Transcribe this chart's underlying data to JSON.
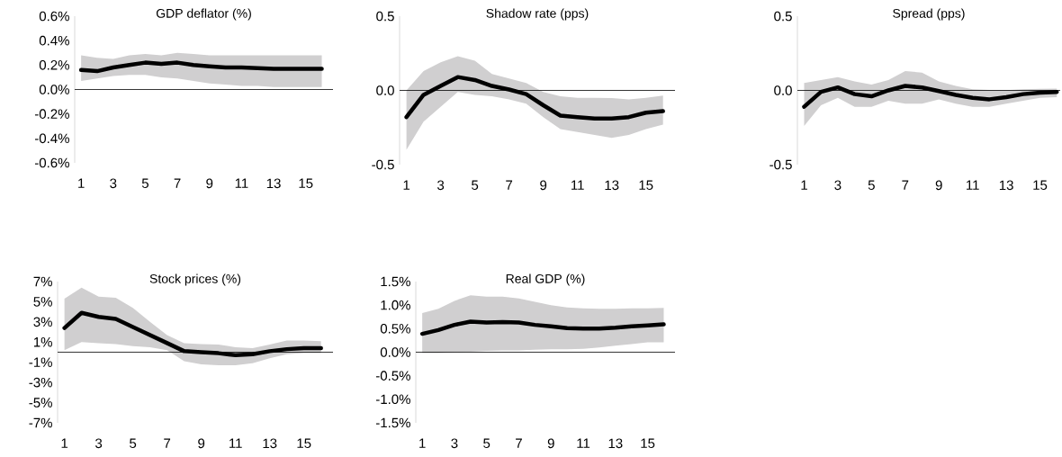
{
  "chart_data": [
    {
      "type": "line",
      "title": "GDP deflator (%)",
      "x": [
        1,
        2,
        3,
        4,
        5,
        6,
        7,
        8,
        9,
        10,
        11,
        12,
        13,
        14,
        15,
        16
      ],
      "xlim": [
        0.6,
        16.7
      ],
      "xticks": [
        1,
        3,
        5,
        7,
        9,
        11,
        13,
        15
      ],
      "ylim": [
        -0.6,
        0.6
      ],
      "yticks": [
        {
          "value": -0.6,
          "label": "-0.6%"
        },
        {
          "value": -0.4,
          "label": "-0.4%"
        },
        {
          "value": -0.2,
          "label": "-0.2%"
        },
        {
          "value": 0,
          "label": "0.0%"
        },
        {
          "value": 0.2,
          "label": "0.2%"
        },
        {
          "value": 0.4,
          "label": "0.4%"
        },
        {
          "value": 0.6,
          "label": "0.6%"
        }
      ],
      "series": [
        {
          "color": "#000000",
          "values": [
            0.16,
            0.15,
            0.18,
            0.2,
            0.22,
            0.21,
            0.22,
            0.2,
            0.19,
            0.18,
            0.18,
            0.175,
            0.17,
            0.17,
            0.17,
            0.17
          ],
          "lower": [
            0.07,
            0.09,
            0.11,
            0.12,
            0.12,
            0.1,
            0.09,
            0.07,
            0.05,
            0.04,
            0.03,
            0.03,
            0.02,
            0.02,
            0.02,
            0.02
          ],
          "upper": [
            0.28,
            0.26,
            0.25,
            0.28,
            0.29,
            0.28,
            0.3,
            0.29,
            0.28,
            0.28,
            0.28,
            0.28,
            0.28,
            0.28,
            0.28,
            0.28
          ]
        }
      ],
      "ref_lines": [
        {
          "axis": "y",
          "value": 0,
          "color": "#000000"
        }
      ]
    },
    {
      "type": "line",
      "title": "Shadow rate (pps)",
      "x": [
        1,
        2,
        3,
        4,
        5,
        6,
        7,
        8,
        9,
        10,
        11,
        12,
        13,
        14,
        15,
        16
      ],
      "xlim": [
        0.6,
        16.7
      ],
      "xticks": [
        1,
        3,
        5,
        7,
        9,
        11,
        13,
        15
      ],
      "ylim": [
        -0.5,
        0.5
      ],
      "yticks": [
        {
          "value": -0.5,
          "label": "-0.5"
        },
        {
          "value": 0,
          "label": "0.0"
        },
        {
          "value": 0.5,
          "label": "0.5"
        }
      ],
      "series": [
        {
          "color": "#000000",
          "values": [
            -0.18,
            -0.03,
            0.03,
            0.09,
            0.07,
            0.03,
            0.006,
            -0.025,
            -0.1,
            -0.17,
            -0.18,
            -0.19,
            -0.19,
            -0.18,
            -0.15,
            -0.14
          ],
          "lower": [
            -0.4,
            -0.21,
            -0.11,
            -0.01,
            -0.03,
            -0.04,
            -0.06,
            -0.09,
            -0.18,
            -0.26,
            -0.28,
            -0.3,
            -0.32,
            -0.3,
            -0.26,
            -0.23
          ],
          "upper": [
            0.0,
            0.13,
            0.19,
            0.23,
            0.2,
            0.11,
            0.08,
            0.05,
            -0.01,
            -0.04,
            -0.05,
            -0.05,
            -0.052,
            -0.06,
            -0.05,
            -0.035
          ]
        }
      ],
      "ref_lines": [
        {
          "axis": "y",
          "value": 0,
          "color": "#000000"
        }
      ]
    },
    {
      "type": "line",
      "title": "Spread (pps)",
      "x": [
        1,
        2,
        3,
        4,
        5,
        6,
        7,
        8,
        9,
        10,
        11,
        12,
        13,
        14,
        15,
        16
      ],
      "xlim": [
        0.6,
        16.2
      ],
      "xticks": [
        1,
        3,
        5,
        7,
        9,
        11,
        13,
        15
      ],
      "ylim": [
        -0.5,
        0.5
      ],
      "yticks": [
        {
          "value": -0.5,
          "label": "-0.5"
        },
        {
          "value": 0,
          "label": "0.0"
        },
        {
          "value": 0.5,
          "label": "0.5"
        }
      ],
      "series": [
        {
          "color": "#000000",
          "values": [
            -0.11,
            -0.01,
            0.02,
            -0.025,
            -0.04,
            0.0,
            0.03,
            0.02,
            -0.005,
            -0.03,
            -0.05,
            -0.06,
            -0.045,
            -0.025,
            -0.015,
            -0.01
          ],
          "lower": [
            -0.24,
            -0.1,
            -0.05,
            -0.11,
            -0.11,
            -0.07,
            -0.09,
            -0.09,
            -0.06,
            -0.09,
            -0.11,
            -0.11,
            -0.09,
            -0.07,
            -0.05,
            -0.045
          ],
          "upper": [
            0.05,
            0.07,
            0.09,
            0.06,
            0.04,
            0.07,
            0.13,
            0.12,
            0.06,
            0.03,
            0.008,
            0.003,
            0.002,
            0.007,
            0.01,
            0.012
          ]
        }
      ],
      "ref_lines": [
        {
          "axis": "y",
          "value": 0,
          "color": "#000000"
        }
      ]
    },
    {
      "type": "line",
      "title": "Stock prices (%)",
      "x": [
        1,
        2,
        3,
        4,
        5,
        6,
        7,
        8,
        9,
        10,
        11,
        12,
        13,
        14,
        15,
        16
      ],
      "xlim": [
        0.6,
        16.7
      ],
      "xticks": [
        1,
        3,
        5,
        7,
        9,
        11,
        13,
        15
      ],
      "ylim": [
        -7,
        7
      ],
      "yticks": [
        {
          "value": -7,
          "label": "-7%"
        },
        {
          "value": -5,
          "label": "-5%"
        },
        {
          "value": -3,
          "label": "-3%"
        },
        {
          "value": -1,
          "label": "-1%"
        },
        {
          "value": 1,
          "label": "1%"
        },
        {
          "value": 3,
          "label": "3%"
        },
        {
          "value": 5,
          "label": "5%"
        },
        {
          "value": 7,
          "label": "7%"
        }
      ],
      "series": [
        {
          "color": "#000000",
          "values": [
            2.4,
            3.9,
            3.5,
            3.3,
            2.5,
            1.7,
            0.9,
            0.1,
            0.0,
            -0.1,
            -0.3,
            -0.2,
            0.1,
            0.3,
            0.4,
            0.4
          ],
          "lower": [
            0.2,
            1.0,
            0.9,
            0.8,
            0.6,
            0.5,
            0.2,
            -0.9,
            -1.2,
            -1.3,
            -1.3,
            -1.1,
            -0.6,
            -0.2,
            -0.1,
            -0.1
          ],
          "upper": [
            5.3,
            6.4,
            5.5,
            5.4,
            4.4,
            3.0,
            1.7,
            0.9,
            0.8,
            0.75,
            0.5,
            0.4,
            0.75,
            1.15,
            1.15,
            1.1
          ]
        }
      ],
      "ref_lines": [
        {
          "axis": "y",
          "value": 0,
          "color": "#000000"
        }
      ]
    },
    {
      "type": "line",
      "title": "Real GDP (%)",
      "x": [
        1,
        2,
        3,
        4,
        5,
        6,
        7,
        8,
        9,
        10,
        11,
        12,
        13,
        14,
        15,
        16
      ],
      "xlim": [
        0.6,
        16.7
      ],
      "xticks": [
        1,
        3,
        5,
        7,
        9,
        11,
        13,
        15
      ],
      "ylim": [
        -1.5,
        1.5
      ],
      "yticks": [
        {
          "value": -1.5,
          "label": "-1.5%"
        },
        {
          "value": -1.0,
          "label": "-1.0%"
        },
        {
          "value": -0.5,
          "label": "-0.5%"
        },
        {
          "value": 0,
          "label": "0.0%"
        },
        {
          "value": 0.5,
          "label": "0.5%"
        },
        {
          "value": 1.0,
          "label": "1.0%"
        },
        {
          "value": 1.5,
          "label": "1.5%"
        }
      ],
      "series": [
        {
          "color": "#000000",
          "values": [
            0.39,
            0.47,
            0.58,
            0.65,
            0.63,
            0.64,
            0.63,
            0.58,
            0.55,
            0.51,
            0.5,
            0.5,
            0.52,
            0.55,
            0.57,
            0.59
          ],
          "lower": [
            -0.02,
            -0.02,
            0.0,
            0.01,
            0.03,
            0.04,
            0.04,
            0.05,
            0.06,
            0.06,
            0.07,
            0.1,
            0.14,
            0.17,
            0.21,
            0.21
          ],
          "upper": [
            0.83,
            0.92,
            1.09,
            1.21,
            1.18,
            1.18,
            1.14,
            1.07,
            1.0,
            0.95,
            0.93,
            0.92,
            0.92,
            0.93,
            0.93,
            0.94
          ]
        }
      ],
      "ref_lines": [
        {
          "axis": "y",
          "value": 0,
          "color": "#000000"
        }
      ]
    }
  ]
}
